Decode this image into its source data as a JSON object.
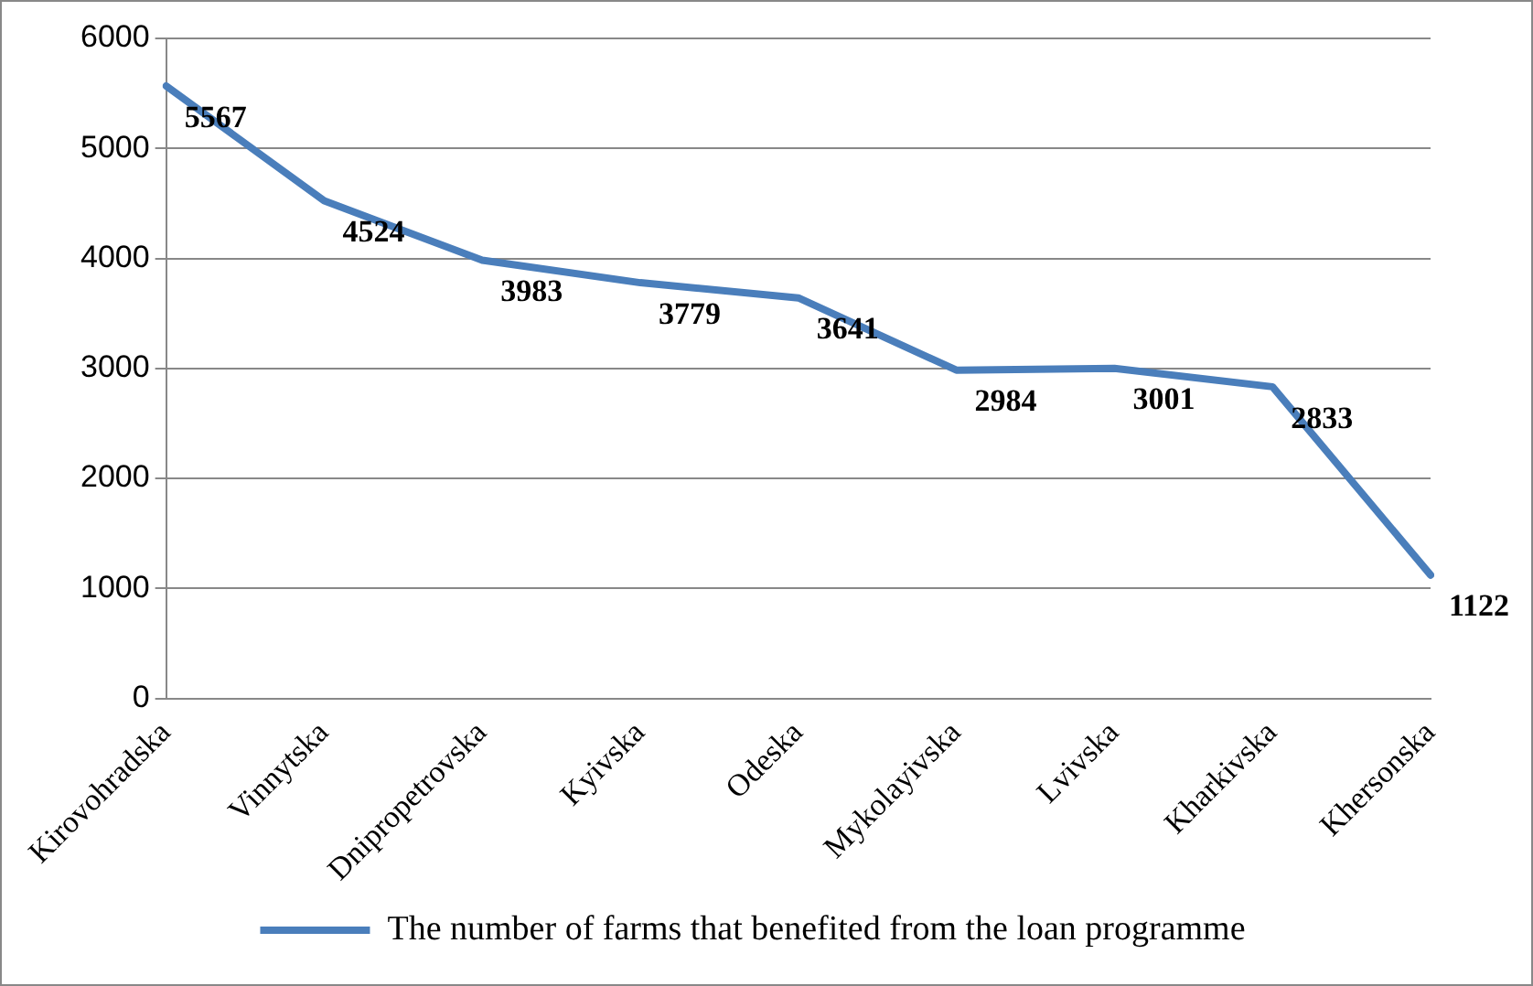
{
  "chart_data": {
    "type": "line",
    "categories": [
      "Kirovohradska",
      "Vinnytska",
      "Dnipropetrovska",
      "Kyivska",
      "Odeska",
      "Mykolayivska",
      "Lvivska",
      "Kharkivska",
      "Khersonska"
    ],
    "series": [
      {
        "name": "The number of farms that benefited from the loan programme",
        "color": "#4a7ebb",
        "values": [
          5567,
          4524,
          3983,
          3779,
          3641,
          2984,
          3001,
          2833,
          1122
        ]
      }
    ],
    "ylim": [
      0,
      6000
    ],
    "yticks": [
      0,
      1000,
      2000,
      3000,
      4000,
      5000,
      6000
    ],
    "grid": "y",
    "legend": "bottom",
    "marker": "none",
    "line_style": "solid",
    "data_labels": true
  }
}
